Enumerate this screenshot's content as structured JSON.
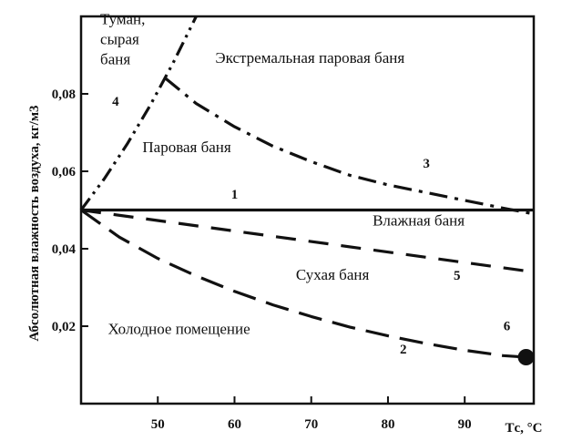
{
  "chart_data": {
    "type": "line",
    "ylabel": "Абсолютная влажность воздуха, кг/м3",
    "xlabel": "Tс, °С",
    "xlim": [
      40,
      99
    ],
    "ylim": [
      0,
      0.1
    ],
    "x_ticks": [
      50,
      60,
      70,
      80,
      90
    ],
    "x_tick_labels": [
      "50",
      "60",
      "70",
      "80",
      "90"
    ],
    "y_ticks": [
      0.02,
      0.04,
      0.06,
      0.08
    ],
    "y_tick_labels": [
      "0,02",
      "0,04",
      "0,06",
      "0,08"
    ],
    "grid": false,
    "series": [
      {
        "name": "1",
        "style": "solid",
        "x": [
          40,
          99
        ],
        "y": [
          0.05,
          0.05
        ]
      },
      {
        "name": "2",
        "style": "long-dash",
        "x": [
          40,
          45,
          50,
          55,
          60,
          65,
          70,
          75,
          80,
          85,
          90,
          95,
          98
        ],
        "y": [
          0.05,
          0.043,
          0.0375,
          0.033,
          0.029,
          0.0255,
          0.0225,
          0.0198,
          0.0175,
          0.0155,
          0.0138,
          0.0124,
          0.012
        ]
      },
      {
        "name": "3",
        "style": "dash-dot",
        "x": [
          51,
          55,
          60,
          65,
          70,
          75,
          80,
          85,
          90,
          95,
          99
        ],
        "y": [
          0.084,
          0.0775,
          0.0715,
          0.0665,
          0.0625,
          0.059,
          0.0565,
          0.0545,
          0.0525,
          0.0505,
          0.049
        ]
      },
      {
        "name": "4",
        "style": "dash-dot-dot",
        "x": [
          40,
          43,
          46,
          49,
          52,
          55
        ],
        "y": [
          0.05,
          0.058,
          0.067,
          0.077,
          0.088,
          0.1
        ]
      },
      {
        "name": "5",
        "style": "dash",
        "x": [
          40,
          99
        ],
        "y": [
          0.05,
          0.034
        ]
      }
    ],
    "end_marker": {
      "x": 98,
      "y": 0.012
    },
    "region_labels": [
      {
        "text_lines": [
          "Туман,",
          "сырая",
          "баня"
        ],
        "x": 42.5,
        "y": 0.098
      },
      {
        "text_lines": [
          "Экстремальная паровая баня"
        ],
        "x": 57.5,
        "y": 0.088
      },
      {
        "text_lines": [
          "Паровая баня"
        ],
        "x": 48,
        "y": 0.065
      },
      {
        "text_lines": [
          "Влажная баня"
        ],
        "x": 78,
        "y": 0.046
      },
      {
        "text_lines": [
          "Сухая баня"
        ],
        "x": 68,
        "y": 0.032
      },
      {
        "text_lines": [
          "Холодное помещение"
        ],
        "x": 43.5,
        "y": 0.018
      }
    ],
    "curve_labels": [
      {
        "text": "1",
        "x": 60,
        "y": 0.053
      },
      {
        "text": "2",
        "x": 82,
        "y": 0.013
      },
      {
        "text": "3",
        "x": 85,
        "y": 0.061
      },
      {
        "text": "4",
        "x": 44.5,
        "y": 0.077
      },
      {
        "text": "5",
        "x": 89,
        "y": 0.032
      },
      {
        "text": "6",
        "x": 95.5,
        "y": 0.019
      }
    ]
  }
}
